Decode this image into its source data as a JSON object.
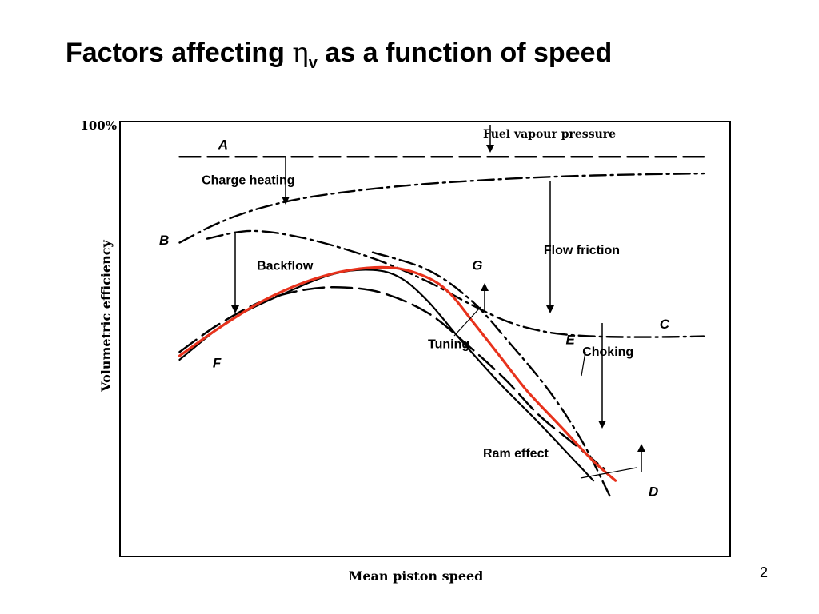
{
  "slide": {
    "title_pre": "Factors affecting ",
    "title_symbol": "η",
    "title_sub": "v",
    "title_post": " as a function of speed",
    "page_number": "2"
  },
  "chart_data": {
    "type": "line",
    "title": "",
    "xlabel": "Mean piston speed",
    "ylabel": "Volumetric efficiency",
    "y_tick_label": "100%",
    "xlim": [
      0,
      100
    ],
    "ylim": [
      0,
      100
    ],
    "grid": false,
    "legend": "none",
    "colors": {
      "ink": "#000000",
      "highlight": "#e8321c"
    },
    "series": [
      {
        "name": "A",
        "style": "dashed",
        "points": [
          [
            5,
            93
          ],
          [
            100,
            93
          ]
        ]
      },
      {
        "name": "B",
        "style": "dash-dot",
        "points": [
          [
            5,
            71
          ],
          [
            12,
            76
          ],
          [
            20,
            80
          ],
          [
            30,
            83
          ],
          [
            45,
            85.5
          ],
          [
            60,
            87
          ],
          [
            75,
            88
          ],
          [
            90,
            88.5
          ],
          [
            100,
            88.7
          ]
        ]
      },
      {
        "name": "C",
        "style": "dash-dot",
        "points": [
          [
            10,
            72
          ],
          [
            18,
            74
          ],
          [
            28,
            72
          ],
          [
            40,
            67
          ],
          [
            50,
            61
          ],
          [
            58,
            55
          ],
          [
            65,
            50.5
          ],
          [
            72,
            48
          ],
          [
            80,
            47
          ],
          [
            90,
            46.8
          ],
          [
            100,
            47
          ]
        ]
      },
      {
        "name": "D",
        "style": "dash-dot",
        "points": [
          [
            40,
            68.5
          ],
          [
            50,
            64
          ],
          [
            58,
            56
          ],
          [
            65,
            45
          ],
          [
            72,
            33
          ],
          [
            78,
            20
          ],
          [
            83,
            6
          ]
        ]
      },
      {
        "name": "E",
        "style": "dashed",
        "points": [
          [
            5,
            43
          ],
          [
            12,
            50
          ],
          [
            20,
            56
          ],
          [
            28,
            59
          ],
          [
            35,
            59.5
          ],
          [
            42,
            58
          ],
          [
            50,
            53
          ],
          [
            57,
            45
          ],
          [
            64,
            36
          ],
          [
            70,
            27
          ],
          [
            76,
            20
          ],
          [
            82,
            13
          ]
        ]
      },
      {
        "name": "F-G",
        "style": "solid",
        "points": [
          [
            5,
            41
          ],
          [
            14,
            51
          ],
          [
            24,
            58
          ],
          [
            33,
            63
          ],
          [
            40,
            64
          ],
          [
            45,
            62
          ],
          [
            50,
            56
          ],
          [
            56,
            46
          ],
          [
            63,
            35
          ],
          [
            70,
            25
          ],
          [
            76,
            16
          ],
          [
            80,
            10
          ]
        ]
      },
      {
        "name": "red",
        "style": "solid-red",
        "points": [
          [
            5,
            42
          ],
          [
            12,
            49
          ],
          [
            20,
            56
          ],
          [
            28,
            61
          ],
          [
            36,
            64
          ],
          [
            44,
            64.5
          ],
          [
            50,
            62
          ],
          [
            54,
            58
          ],
          [
            58,
            51
          ],
          [
            63,
            42
          ],
          [
            68,
            33
          ],
          [
            74,
            24
          ],
          [
            80,
            15
          ],
          [
            84,
            10
          ]
        ]
      }
    ],
    "annotations": [
      {
        "text": "A",
        "at": [
          12,
          95
        ],
        "italic": true
      },
      {
        "text": "B",
        "at": [
          1.3,
          70.5
        ],
        "italic": true
      },
      {
        "text": "C",
        "at": [
          92,
          49
        ],
        "italic": true
      },
      {
        "text": "D",
        "at": [
          90,
          6
        ],
        "italic": true
      },
      {
        "text": "E",
        "at": [
          75,
          45
        ],
        "italic": true
      },
      {
        "text": "F",
        "at": [
          11,
          39
        ],
        "italic": true
      },
      {
        "text": "G",
        "at": [
          58,
          64
        ],
        "italic": true
      },
      {
        "text": "Charge heating",
        "at": [
          9,
          86
        ]
      },
      {
        "text": "Backflow",
        "at": [
          19,
          64
        ]
      },
      {
        "text": "Flow friction",
        "at": [
          71,
          68
        ]
      },
      {
        "text": "Tuning",
        "at": [
          50,
          44
        ]
      },
      {
        "text": "Choking",
        "at": [
          78,
          42
        ]
      },
      {
        "text": "Ram effect",
        "at": [
          60,
          16
        ]
      },
      {
        "text": "Fuel vapour pressure",
        "at": [
          60,
          98
        ],
        "bold": true,
        "serif": true
      }
    ]
  }
}
